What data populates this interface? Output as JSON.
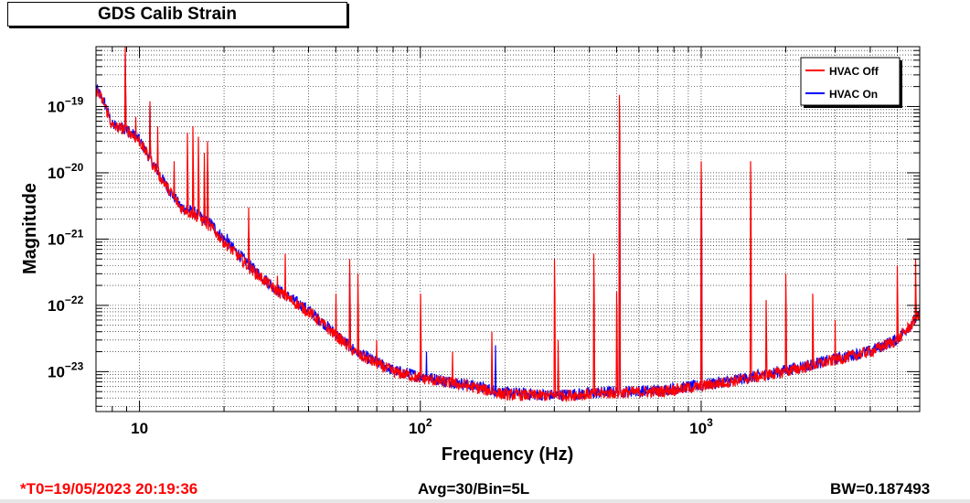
{
  "title": "GDS Calib Strain",
  "footer": {
    "t0": "*T0=19/05/2023 20:19:36",
    "avg": "Avg=30/Bin=5L",
    "bw": "BW=0.187493"
  },
  "colors": {
    "off": "#ff0000",
    "on": "#0000ff",
    "t0": "#ff0000"
  },
  "chart_data": {
    "type": "line",
    "title": "GDS Calib Strain",
    "xlabel": "Frequency (Hz)",
    "ylabel": "Magnitude",
    "xscale": "log",
    "yscale": "log",
    "xlim": [
      7,
      6000
    ],
    "ylim": [
      2.5e-24,
      8e-19
    ],
    "grid": true,
    "legend_position": "top-right",
    "x_ticks": [
      {
        "value": 10,
        "base": "10",
        "exp": ""
      },
      {
        "value": 100,
        "base": "10",
        "exp": "2"
      },
      {
        "value": 1000,
        "base": "10",
        "exp": "3"
      }
    ],
    "y_ticks": [
      {
        "value": 1e-23,
        "base": "10",
        "exp": "−23"
      },
      {
        "value": 1e-22,
        "base": "10",
        "exp": "−22"
      },
      {
        "value": 1e-21,
        "base": "10",
        "exp": "−21"
      },
      {
        "value": 1e-20,
        "base": "10",
        "exp": "−20"
      },
      {
        "value": 1e-19,
        "base": "10",
        "exp": "−19"
      }
    ],
    "series": [
      {
        "name": "HVAC Off",
        "color": "#ff0000",
        "baseline": [
          [
            7,
            1.8e-19
          ],
          [
            7.5,
            1.1e-19
          ],
          [
            8,
            5e-20
          ],
          [
            9,
            4.5e-20
          ],
          [
            10,
            3e-20
          ],
          [
            11,
            1.5e-20
          ],
          [
            12,
            8e-21
          ],
          [
            14,
            3e-21
          ],
          [
            16,
            2.2e-21
          ],
          [
            18,
            1.5e-21
          ],
          [
            20,
            9e-22
          ],
          [
            25,
            3.5e-22
          ],
          [
            30,
            1.8e-22
          ],
          [
            40,
            8e-23
          ],
          [
            50,
            3.5e-23
          ],
          [
            60,
            1.8e-23
          ],
          [
            80,
            1e-23
          ],
          [
            100,
            8e-24
          ],
          [
            150,
            6e-24
          ],
          [
            200,
            4.5e-24
          ],
          [
            300,
            4.3e-24
          ],
          [
            500,
            4.8e-24
          ],
          [
            700,
            5e-24
          ],
          [
            1000,
            6e-24
          ],
          [
            1500,
            8e-24
          ],
          [
            2000,
            1e-23
          ],
          [
            3000,
            1.5e-23
          ],
          [
            4000,
            2e-23
          ],
          [
            5000,
            3e-23
          ],
          [
            6000,
            7e-23
          ]
        ],
        "peaks": [
          [
            8.9,
            8e-19
          ],
          [
            9.7,
            7e-20
          ],
          [
            10.9,
            1.2e-19
          ],
          [
            11.6,
            5e-20
          ],
          [
            13.3,
            1.5e-20
          ],
          [
            14.8,
            4e-20
          ],
          [
            15.5,
            5e-20
          ],
          [
            16.2,
            3.5e-20
          ],
          [
            17.0,
            2e-20
          ],
          [
            17.5,
            3e-20
          ],
          [
            24.5,
            3e-21
          ],
          [
            31,
            2.8e-22
          ],
          [
            33,
            6e-22
          ],
          [
            50,
            1.5e-22
          ],
          [
            56,
            5e-22
          ],
          [
            60,
            3e-22
          ],
          [
            70,
            3e-23
          ],
          [
            100,
            1.5e-22
          ],
          [
            130,
            2e-23
          ],
          [
            180,
            4e-23
          ],
          [
            300,
            5e-22
          ],
          [
            310,
            3e-23
          ],
          [
            415,
            6e-22
          ],
          [
            500,
            1.6e-22
          ],
          [
            512,
            1.5e-19
          ],
          [
            1000,
            1.5e-20
          ],
          [
            1500,
            1.5e-20
          ],
          [
            1700,
            1.2e-22
          ],
          [
            2000,
            3e-22
          ],
          [
            2500,
            1.5e-22
          ],
          [
            3000,
            6e-23
          ],
          [
            5000,
            4e-22
          ],
          [
            5800,
            5e-22
          ]
        ]
      },
      {
        "name": "HVAC On",
        "color": "#0000ff",
        "baseline": [
          [
            7,
            1.9e-19
          ],
          [
            7.5,
            1.15e-19
          ],
          [
            8,
            5.2e-20
          ],
          [
            9,
            4.6e-20
          ],
          [
            10,
            3.1e-20
          ],
          [
            11,
            1.55e-20
          ],
          [
            12,
            8.2e-21
          ],
          [
            14,
            3.1e-21
          ],
          [
            16,
            2.4e-21
          ],
          [
            18,
            1.7e-21
          ],
          [
            20,
            1e-21
          ],
          [
            25,
            3.8e-22
          ],
          [
            30,
            1.9e-22
          ],
          [
            40,
            8.5e-23
          ],
          [
            50,
            3.7e-23
          ],
          [
            60,
            1.9e-23
          ],
          [
            80,
            1.05e-23
          ],
          [
            100,
            8.5e-24
          ],
          [
            150,
            6.3e-24
          ],
          [
            200,
            4.8e-24
          ],
          [
            300,
            4.4e-24
          ],
          [
            500,
            5e-24
          ],
          [
            700,
            5.2e-24
          ],
          [
            1000,
            6.2e-24
          ],
          [
            1500,
            8.2e-24
          ],
          [
            2000,
            1.05e-23
          ],
          [
            3000,
            1.55e-23
          ],
          [
            4000,
            2.05e-23
          ],
          [
            5000,
            3.1e-23
          ],
          [
            6000,
            7.2e-23
          ]
        ],
        "peaks": [
          [
            8.9,
            6e-19
          ],
          [
            10.9,
            1e-19
          ],
          [
            20.5,
            1.2e-21
          ],
          [
            56,
            3e-22
          ],
          [
            105,
            2e-23
          ],
          [
            185,
            2.5e-23
          ],
          [
            512,
            4e-20
          ],
          [
            1000,
            8e-21
          ]
        ]
      }
    ]
  }
}
